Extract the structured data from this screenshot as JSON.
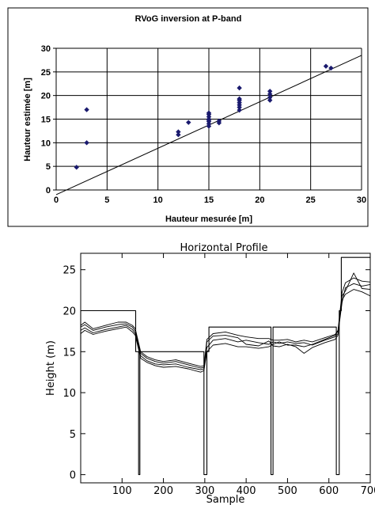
{
  "chart_data": [
    {
      "type": "scatter",
      "title": "RVoG inversion at P-band",
      "xlabel": "Hauteur mesurée [m]",
      "ylabel": "Hauteur estimée [m]",
      "xlim": [
        0,
        30
      ],
      "ylim": [
        0,
        30
      ],
      "xticks": [
        "0",
        "5",
        "10",
        "15",
        "20",
        "25",
        "30"
      ],
      "yticks": [
        "0",
        "5",
        "10",
        "15",
        "20",
        "25",
        "30"
      ],
      "grid": true,
      "marker_color": "#1a1a6e",
      "reference_line": {
        "x": [
          0,
          30
        ],
        "y": [
          -1,
          28.5
        ]
      },
      "x": [
        2,
        3,
        3,
        12,
        12,
        13,
        15,
        15,
        15,
        15,
        15,
        15,
        15,
        15,
        16,
        16,
        18,
        18,
        18,
        18,
        18,
        18,
        18,
        21,
        21,
        21,
        21,
        26.5,
        27
      ],
      "y": [
        4.8,
        10,
        17,
        11.7,
        12.3,
        14.3,
        13.5,
        14,
        14.5,
        15,
        15.5,
        16,
        16.3,
        14.8,
        14.2,
        14.6,
        16.9,
        17.5,
        18,
        18.5,
        19,
        19.3,
        21.6,
        19,
        19.6,
        20.3,
        20.9,
        26.2,
        25.8
      ]
    },
    {
      "type": "line",
      "title": "Horizontal Profile",
      "xlabel": "Sample",
      "ylabel": "Height (m)",
      "xlim": [
        0,
        700
      ],
      "ylim": [
        -1,
        27
      ],
      "xticks": [
        "100",
        "200",
        "300",
        "400",
        "500",
        "600",
        "700"
      ],
      "yticks": [
        "0",
        "5",
        "10",
        "15",
        "20",
        "25"
      ],
      "series": [
        {
          "role": "step",
          "x": [
            0,
            0,
            133,
            133,
            140,
            140,
            143,
            143,
            298,
            298,
            305,
            305,
            310,
            310,
            460,
            460,
            465,
            465,
            470,
            470,
            618,
            618,
            625,
            625,
            630,
            630,
            700
          ],
          "values": [
            10,
            20,
            20,
            15,
            15,
            0,
            0,
            15,
            15,
            0,
            0,
            15,
            15,
            18,
            18,
            0,
            0,
            18,
            18,
            18,
            18,
            0,
            0,
            20,
            20,
            26.5,
            26.5
          ]
        },
        {
          "role": "estimate",
          "x": [
            0,
            10,
            30,
            60,
            90,
            110,
            125,
            132,
            145,
            160,
            180,
            200,
            230,
            260,
            290,
            298,
            305,
            320,
            350,
            380,
            400,
            430,
            455,
            465,
            480,
            500,
            520,
            540,
            560,
            590,
            615,
            622,
            632,
            640,
            660,
            680,
            700
          ],
          "values": [
            18,
            18.3,
            17.6,
            18,
            18.3,
            18.4,
            18,
            17.5,
            14.8,
            14.2,
            13.8,
            13.6,
            13.8,
            13.4,
            13,
            13.1,
            15.5,
            16.4,
            16.6,
            16.2,
            16.4,
            16.1,
            15.9,
            16.2,
            16,
            16.2,
            16,
            16.1,
            15.8,
            16.4,
            16.8,
            17.2,
            21,
            22.8,
            23.3,
            23,
            23.2
          ]
        },
        {
          "role": "estimate",
          "x": [
            0,
            10,
            30,
            60,
            90,
            110,
            125,
            132,
            145,
            160,
            180,
            200,
            230,
            260,
            290,
            298,
            305,
            320,
            350,
            380,
            400,
            430,
            455,
            465,
            480,
            500,
            520,
            540,
            560,
            590,
            615,
            622,
            632,
            640,
            660,
            680,
            700
          ],
          "values": [
            17.6,
            17.9,
            17.3,
            17.7,
            18,
            18.2,
            17.7,
            17.2,
            14.5,
            13.9,
            13.5,
            13.4,
            13.5,
            13.1,
            12.8,
            12.9,
            16.2,
            16.9,
            17,
            16.7,
            15.9,
            15.7,
            16.3,
            15.7,
            15.6,
            15.9,
            15.6,
            14.8,
            15.5,
            16.1,
            16.5,
            17,
            21.8,
            22.4,
            24.6,
            22.7,
            22.6
          ]
        },
        {
          "role": "estimate",
          "x": [
            0,
            10,
            30,
            60,
            90,
            110,
            125,
            132,
            145,
            160,
            180,
            200,
            230,
            260,
            290,
            298,
            305,
            320,
            350,
            380,
            400,
            430,
            455,
            465,
            480,
            500,
            520,
            540,
            560,
            590,
            615,
            622,
            632,
            640,
            660,
            680,
            700
          ],
          "values": [
            17.2,
            17.6,
            17.1,
            17.5,
            17.8,
            18,
            17.4,
            17,
            14.2,
            13.7,
            13.3,
            13.1,
            13.2,
            12.9,
            12.5,
            12.7,
            15,
            15.8,
            16,
            15.6,
            15.6,
            15.4,
            15.6,
            15.9,
            16.2,
            15.8,
            15.8,
            15.6,
            15.9,
            16.5,
            17,
            17.5,
            21.3,
            22,
            22.6,
            22.3,
            21.8
          ]
        },
        {
          "role": "estimate",
          "x": [
            0,
            10,
            30,
            60,
            90,
            110,
            125,
            132,
            145,
            160,
            180,
            200,
            230,
            260,
            290,
            298,
            305,
            320,
            350,
            380,
            400,
            430,
            455,
            465,
            480,
            500,
            520,
            540,
            560,
            590,
            615,
            622,
            632,
            640,
            660,
            680,
            700
          ],
          "values": [
            18.2,
            18.6,
            17.8,
            18.2,
            18.6,
            18.6,
            18.2,
            17.8,
            15,
            14.4,
            14,
            13.8,
            14,
            13.6,
            13.2,
            13.3,
            16.5,
            17.2,
            17.4,
            17,
            16.8,
            16.6,
            16.6,
            16.4,
            16.4,
            16.5,
            16.2,
            16.4,
            16.2,
            16.7,
            17.1,
            17.6,
            22.2,
            23.4,
            24,
            23.6,
            23.5
          ]
        }
      ]
    }
  ]
}
